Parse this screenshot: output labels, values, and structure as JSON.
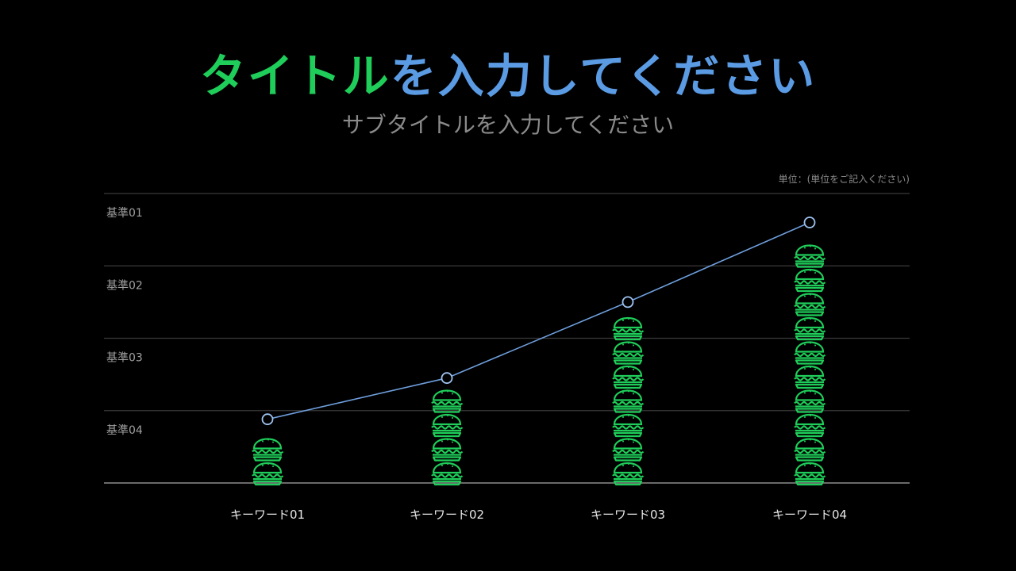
{
  "title": {
    "highlight": "タイトル",
    "rest": "を入力してください",
    "highlight_color": "#1fce5a",
    "rest_color": "#5b9be3"
  },
  "subtitle": "サブタイトルを入力してください",
  "chart_data": {
    "type": "bar",
    "unit_note": "単位：(単位をご記入ください)",
    "y_reference_labels": [
      "基準01",
      "基準02",
      "基準03",
      "基準04"
    ],
    "categories": [
      "キーワード01",
      "キーワード02",
      "キーワード03",
      "キーワード04"
    ],
    "ylim": [
      0,
      4
    ],
    "bar_values": [
      0.65,
      1.25,
      2.3,
      3.3
    ],
    "line_values": [
      0.88,
      1.45,
      2.5,
      3.6
    ],
    "grid": true,
    "bar_icon": "hamburger-icon",
    "bar_color": "#1fce5a",
    "line_color": "#6f9fde"
  }
}
